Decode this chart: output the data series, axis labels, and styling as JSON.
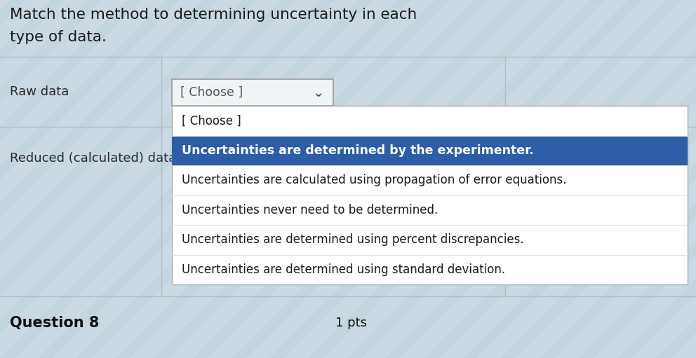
{
  "title_line1": "Match the method to determining uncertainty in each",
  "title_line2": "type of data.",
  "background_color": "#cad9e3",
  "raw_data_label": "Raw data",
  "reduced_data_label": "Reduced (calculated) data",
  "choose_box_text": "[ Choose ]",
  "dropdown_items": [
    "[ Choose ]",
    "Uncertainties are determined by the experimenter.",
    "Uncertainties are calculated using propagation of error equations.",
    "Uncertainties never need to be determined.",
    "Uncertainties are determined using percent discrepancies.",
    "Uncertainties are determined using standard deviation."
  ],
  "highlighted_item_index": 1,
  "highlighted_bg": "#2e5da8",
  "highlighted_fg": "#ffffff",
  "dropdown_bg": "#ffffff",
  "dropdown_border": "#b0b0b0",
  "choose_box_border": "#999999",
  "choose_box_bg": "#f0f4f7",
  "question_label": "Question 8",
  "pts_label": "1 pts",
  "title_color": "#1a1a1a",
  "label_color": "#2a2a2a",
  "normal_item_color": "#1a1a1a",
  "question_color": "#111111",
  "divider_color": "#b0bec5",
  "stripe_color": "#b8cfd8",
  "stripe_alpha": 0.35
}
